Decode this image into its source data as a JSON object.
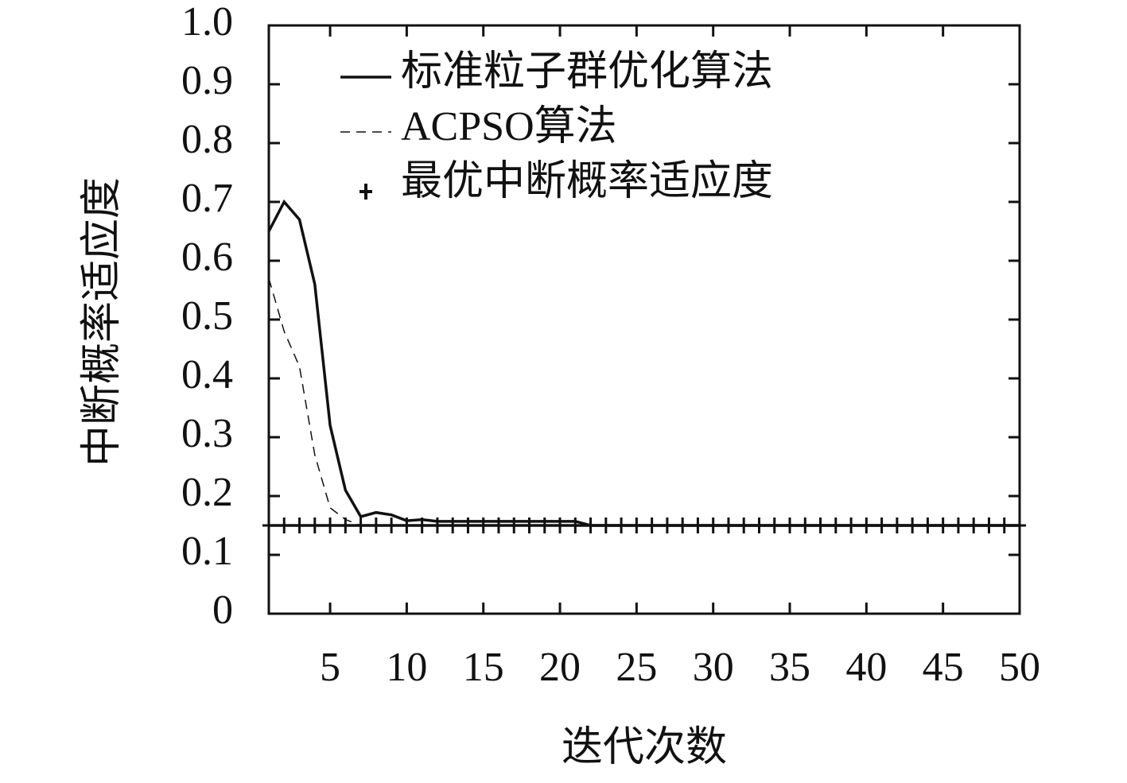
{
  "chart_data": {
    "type": "line",
    "xlabel": "迭代次数",
    "ylabel": "中断概率适应度",
    "x": [
      1,
      2,
      3,
      4,
      5,
      6,
      7,
      8,
      9,
      10,
      11,
      12,
      13,
      14,
      15,
      16,
      17,
      18,
      19,
      20,
      21,
      22,
      23,
      24,
      25,
      26,
      27,
      28,
      29,
      30,
      31,
      32,
      33,
      34,
      35,
      36,
      37,
      38,
      39,
      40,
      41,
      42,
      43,
      44,
      45,
      46,
      47,
      48,
      49,
      50
    ],
    "series": [
      {
        "name": "标准粒子群优化算法",
        "color": "#111111",
        "line_style": "solid",
        "marker": "none",
        "values": [
          0.65,
          0.7,
          0.67,
          0.56,
          0.32,
          0.21,
          0.165,
          0.172,
          0.168,
          0.158,
          0.16,
          0.157,
          0.157,
          0.157,
          0.157,
          0.157,
          0.157,
          0.157,
          0.157,
          0.157,
          0.157,
          0.15,
          0.15,
          0.15,
          0.15,
          0.15,
          0.15,
          0.15,
          0.15,
          0.15,
          0.15,
          0.15,
          0.15,
          0.15,
          0.15,
          0.15,
          0.15,
          0.15,
          0.15,
          0.15,
          0.15,
          0.15,
          0.15,
          0.15,
          0.15,
          0.15,
          0.15,
          0.15,
          0.15,
          0.15
        ]
      },
      {
        "name": "ACPSO算法",
        "color": "#111111",
        "line_style": "dashed",
        "marker": "none",
        "values": [
          0.57,
          0.48,
          0.42,
          0.27,
          0.18,
          0.16,
          0.15,
          0.15,
          0.15,
          0.15,
          0.15,
          0.15,
          0.15,
          0.15,
          0.15,
          0.15,
          0.15,
          0.15,
          0.15,
          0.15,
          0.15,
          0.15,
          0.15,
          0.15,
          0.15,
          0.15,
          0.15,
          0.15,
          0.15,
          0.15,
          0.15,
          0.15,
          0.15,
          0.15,
          0.15,
          0.15,
          0.15,
          0.15,
          0.15,
          0.15,
          0.15,
          0.15,
          0.15,
          0.15,
          0.15,
          0.15,
          0.15,
          0.15,
          0.15,
          0.15
        ]
      },
      {
        "name": "最优中断概率适应度",
        "color": "#111111",
        "line_style": "solid",
        "marker": "+",
        "values": [
          0.15,
          0.15,
          0.15,
          0.15,
          0.15,
          0.15,
          0.15,
          0.15,
          0.15,
          0.15,
          0.15,
          0.15,
          0.15,
          0.15,
          0.15,
          0.15,
          0.15,
          0.15,
          0.15,
          0.15,
          0.15,
          0.15,
          0.15,
          0.15,
          0.15,
          0.15,
          0.15,
          0.15,
          0.15,
          0.15,
          0.15,
          0.15,
          0.15,
          0.15,
          0.15,
          0.15,
          0.15,
          0.15,
          0.15,
          0.15,
          0.15,
          0.15,
          0.15,
          0.15,
          0.15,
          0.15,
          0.15,
          0.15,
          0.15,
          0.15
        ]
      }
    ],
    "xlim": [
      1,
      50
    ],
    "xticks": [
      5,
      10,
      15,
      20,
      25,
      30,
      35,
      40,
      45,
      50
    ],
    "ylim": [
      0,
      1
    ],
    "yticks": [
      0,
      0.1,
      0.2,
      0.3,
      0.4,
      0.5,
      0.6,
      0.7,
      0.8,
      0.9,
      {
        "value": 1,
        "label": "1.0"
      }
    ],
    "legend": "upper left",
    "grid": false
  }
}
